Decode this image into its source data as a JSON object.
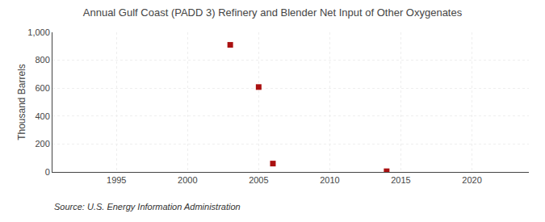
{
  "chart_data": {
    "type": "scatter",
    "title": "Annual Gulf Coast (PADD 3) Refinery and Blender Net Input of Other Oxygenates",
    "ylabel": "Thousand Barrels",
    "annotations": [
      "Source: U.S. Energy Information Administration"
    ],
    "x": [
      2003,
      2005,
      2006,
      2014
    ],
    "values": [
      910,
      608,
      60,
      5
    ],
    "color": "#aa1111",
    "marker": "square",
    "xlim": [
      1990.5,
      2024
    ],
    "ylim": [
      0,
      1000
    ],
    "xticks": [
      1995,
      2000,
      2005,
      2010,
      2015,
      2020
    ],
    "yticks": [
      0,
      200,
      400,
      600,
      800,
      {
        "value": 1000,
        "label": "1,000"
      }
    ],
    "grid": true
  }
}
